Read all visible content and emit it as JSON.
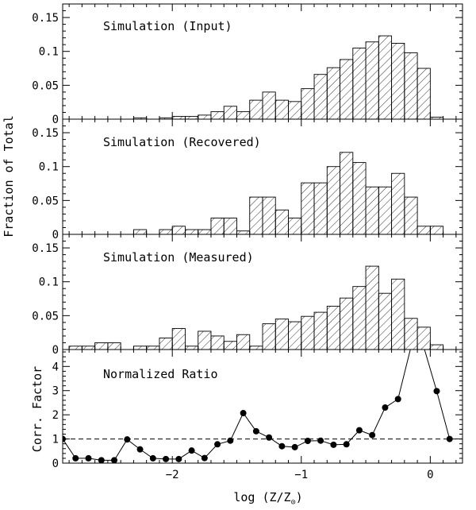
{
  "chart_data": {
    "type": "histogram-stack",
    "x_label": "log (Z/Z",
    "x_label_sub": "⊙",
    "x_label_close": ")",
    "y_label_shared": "Fraction of Total",
    "xlim": [
      -2.85,
      0.25
    ],
    "x_ticks": [
      {
        "value": -2,
        "label": "−2"
      },
      {
        "value": -1,
        "label": "−1"
      },
      {
        "value": 0,
        "label": "0"
      }
    ],
    "bin_edges": [
      -2.8,
      -2.7,
      -2.6,
      -2.5,
      -2.4,
      -2.3,
      -2.2,
      -2.1,
      -2.0,
      -1.9,
      -1.8,
      -1.7,
      -1.6,
      -1.5,
      -1.4,
      -1.3,
      -1.2,
      -1.1,
      -1.0,
      -0.9,
      -0.8,
      -0.7,
      -0.6,
      -0.5,
      -0.4,
      -0.3,
      -0.2,
      -0.1,
      0.0,
      0.1
    ],
    "panels": [
      {
        "title": "Simulation (Input)",
        "ylim": [
          0,
          0.17
        ],
        "y_ticks": [
          {
            "value": 0,
            "label": "0"
          },
          {
            "value": 0.05,
            "label": "0.05"
          },
          {
            "value": 0.1,
            "label": "0.1"
          },
          {
            "value": 0.15,
            "label": "0.15"
          }
        ],
        "values": [
          0,
          0,
          0,
          0,
          0,
          0.002,
          0,
          0.002,
          0.004,
          0.004,
          0.006,
          0.011,
          0.019,
          0.011,
          0.028,
          0.04,
          0.028,
          0.026,
          0.045,
          0.066,
          0.076,
          0.088,
          0.105,
          0.114,
          0.123,
          0.112,
          0.098,
          0.075,
          0.003,
          0
        ]
      },
      {
        "title": "Simulation (Recovered)",
        "ylim": [
          0,
          0.17
        ],
        "y_ticks": [
          {
            "value": 0,
            "label": "0"
          },
          {
            "value": 0.05,
            "label": "0.05"
          },
          {
            "value": 0.1,
            "label": "0.1"
          },
          {
            "value": 0.15,
            "label": "0.15"
          }
        ],
        "values": [
          0,
          0,
          0,
          0,
          0,
          0.007,
          0,
          0.007,
          0.012,
          0.007,
          0.007,
          0.024,
          0.024,
          0.005,
          0.055,
          0.055,
          0.036,
          0.024,
          0.076,
          0.076,
          0.1,
          0.121,
          0.106,
          0.07,
          0.07,
          0.09,
          0.055,
          0.012,
          0.012,
          0
        ]
      },
      {
        "title": "Simulation (Measured)",
        "ylim": [
          0,
          0.17
        ],
        "y_ticks": [
          {
            "value": 0,
            "label": "0"
          },
          {
            "value": 0.05,
            "label": "0.05"
          },
          {
            "value": 0.1,
            "label": "0.1"
          },
          {
            "value": 0.15,
            "label": "0.15"
          }
        ],
        "values": [
          0.005,
          0.005,
          0.01,
          0.01,
          0,
          0.005,
          0.005,
          0.017,
          0.031,
          0.005,
          0.027,
          0.02,
          0.012,
          0.022,
          0.005,
          0.038,
          0.045,
          0.041,
          0.049,
          0.055,
          0.064,
          0.076,
          0.093,
          0.123,
          0.083,
          0.104,
          0.046,
          0.033,
          0.007,
          0
        ]
      }
    ],
    "ratio_panel": {
      "title": "Normalized Ratio",
      "y_label": "Corr. Factor",
      "ylim": [
        0,
        4.7
      ],
      "y_ticks": [
        {
          "value": 0,
          "label": "0"
        },
        {
          "value": 1,
          "label": "1"
        },
        {
          "value": 2,
          "label": "2"
        },
        {
          "value": 3,
          "label": "3"
        },
        {
          "value": 4,
          "label": "4"
        }
      ],
      "reference_value": 1,
      "points": [
        [
          -2.85,
          1.0
        ],
        [
          -2.75,
          0.2
        ],
        [
          -2.65,
          0.2
        ],
        [
          -2.55,
          0.12
        ],
        [
          -2.45,
          0.12
        ],
        [
          -2.35,
          0.98
        ],
        [
          -2.25,
          0.57
        ],
        [
          -2.15,
          0.2
        ],
        [
          -2.05,
          0.17
        ],
        [
          -1.95,
          0.17
        ],
        [
          -1.85,
          0.52
        ],
        [
          -1.75,
          0.21
        ],
        [
          -1.65,
          0.78
        ],
        [
          -1.55,
          0.93
        ],
        [
          -1.45,
          2.07
        ],
        [
          -1.35,
          1.32
        ],
        [
          -1.25,
          1.06
        ],
        [
          -1.15,
          0.7
        ],
        [
          -1.05,
          0.66
        ],
        [
          -0.95,
          0.92
        ],
        [
          -0.85,
          0.93
        ],
        [
          -0.75,
          0.76
        ],
        [
          -0.65,
          0.78
        ],
        [
          -0.55,
          1.36
        ],
        [
          -0.45,
          1.16
        ],
        [
          -0.35,
          2.3
        ],
        [
          -0.25,
          2.65
        ],
        [
          -0.15,
          4.8
        ],
        [
          -0.05,
          4.8
        ],
        [
          0.05,
          2.98
        ],
        [
          0.15,
          1.0
        ]
      ],
      "marked_points": [
        [
          -2.85,
          1.0
        ],
        [
          -2.75,
          0.2
        ],
        [
          -2.65,
          0.2
        ],
        [
          -2.55,
          0.12
        ],
        [
          -2.45,
          0.12
        ],
        [
          -2.35,
          0.98
        ],
        [
          -2.25,
          0.57
        ],
        [
          -2.15,
          0.2
        ],
        [
          -2.05,
          0.17
        ],
        [
          -1.95,
          0.17
        ],
        [
          -1.85,
          0.52
        ],
        [
          -1.75,
          0.21
        ],
        [
          -1.65,
          0.78
        ],
        [
          -1.55,
          0.93
        ],
        [
          -1.45,
          2.07
        ],
        [
          -1.35,
          1.32
        ],
        [
          -1.25,
          1.06
        ],
        [
          -1.15,
          0.7
        ],
        [
          -1.05,
          0.66
        ],
        [
          -0.95,
          0.92
        ],
        [
          -0.85,
          0.93
        ],
        [
          -0.75,
          0.76
        ],
        [
          -0.65,
          0.78
        ],
        [
          -0.55,
          1.36
        ],
        [
          -0.45,
          1.16
        ],
        [
          -0.35,
          2.3
        ],
        [
          -0.25,
          2.65
        ],
        [
          0.05,
          2.98
        ],
        [
          0.15,
          1.0
        ]
      ]
    }
  }
}
